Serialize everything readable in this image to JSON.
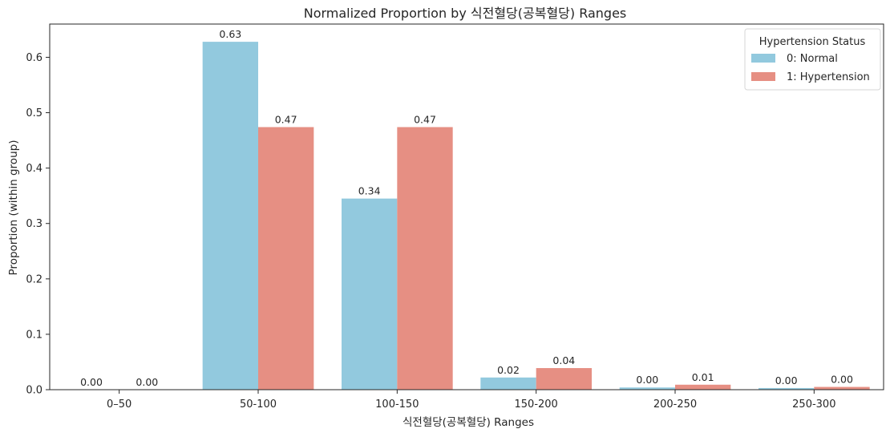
{
  "chart_data": {
    "type": "bar",
    "title": "Normalized Proportion by 식전혈당(공복혈당) Ranges",
    "xlabel": "식전혈당(공복혈당) Ranges",
    "ylabel": "Proportion (within group)",
    "categories": [
      "0–50",
      "50-100",
      "100-150",
      "150-200",
      "200-250",
      "250-300"
    ],
    "ylim": [
      0,
      0.66
    ],
    "yticks": [
      0.0,
      0.1,
      0.2,
      0.3,
      0.4,
      0.5,
      0.6
    ],
    "ytick_labels": [
      "0.0",
      "0.1",
      "0.2",
      "0.3",
      "0.4",
      "0.5",
      "0.6"
    ],
    "grid": false,
    "legend": {
      "title": "Hypertension Status",
      "position": "top-right"
    },
    "series": [
      {
        "name": "0: Normal",
        "color": "#92c9de",
        "values": [
          0.0,
          0.628,
          0.345,
          0.022,
          0.004,
          0.003
        ],
        "labels": [
          "0.00",
          "0.63",
          "0.34",
          "0.02",
          "0.00",
          "0.00"
        ]
      },
      {
        "name": "1: Hypertension",
        "color": "#e68f83",
        "values": [
          0.0,
          0.474,
          0.474,
          0.039,
          0.009,
          0.005
        ],
        "labels": [
          "0.00",
          "0.47",
          "0.47",
          "0.04",
          "0.01",
          "0.00"
        ]
      }
    ]
  }
}
